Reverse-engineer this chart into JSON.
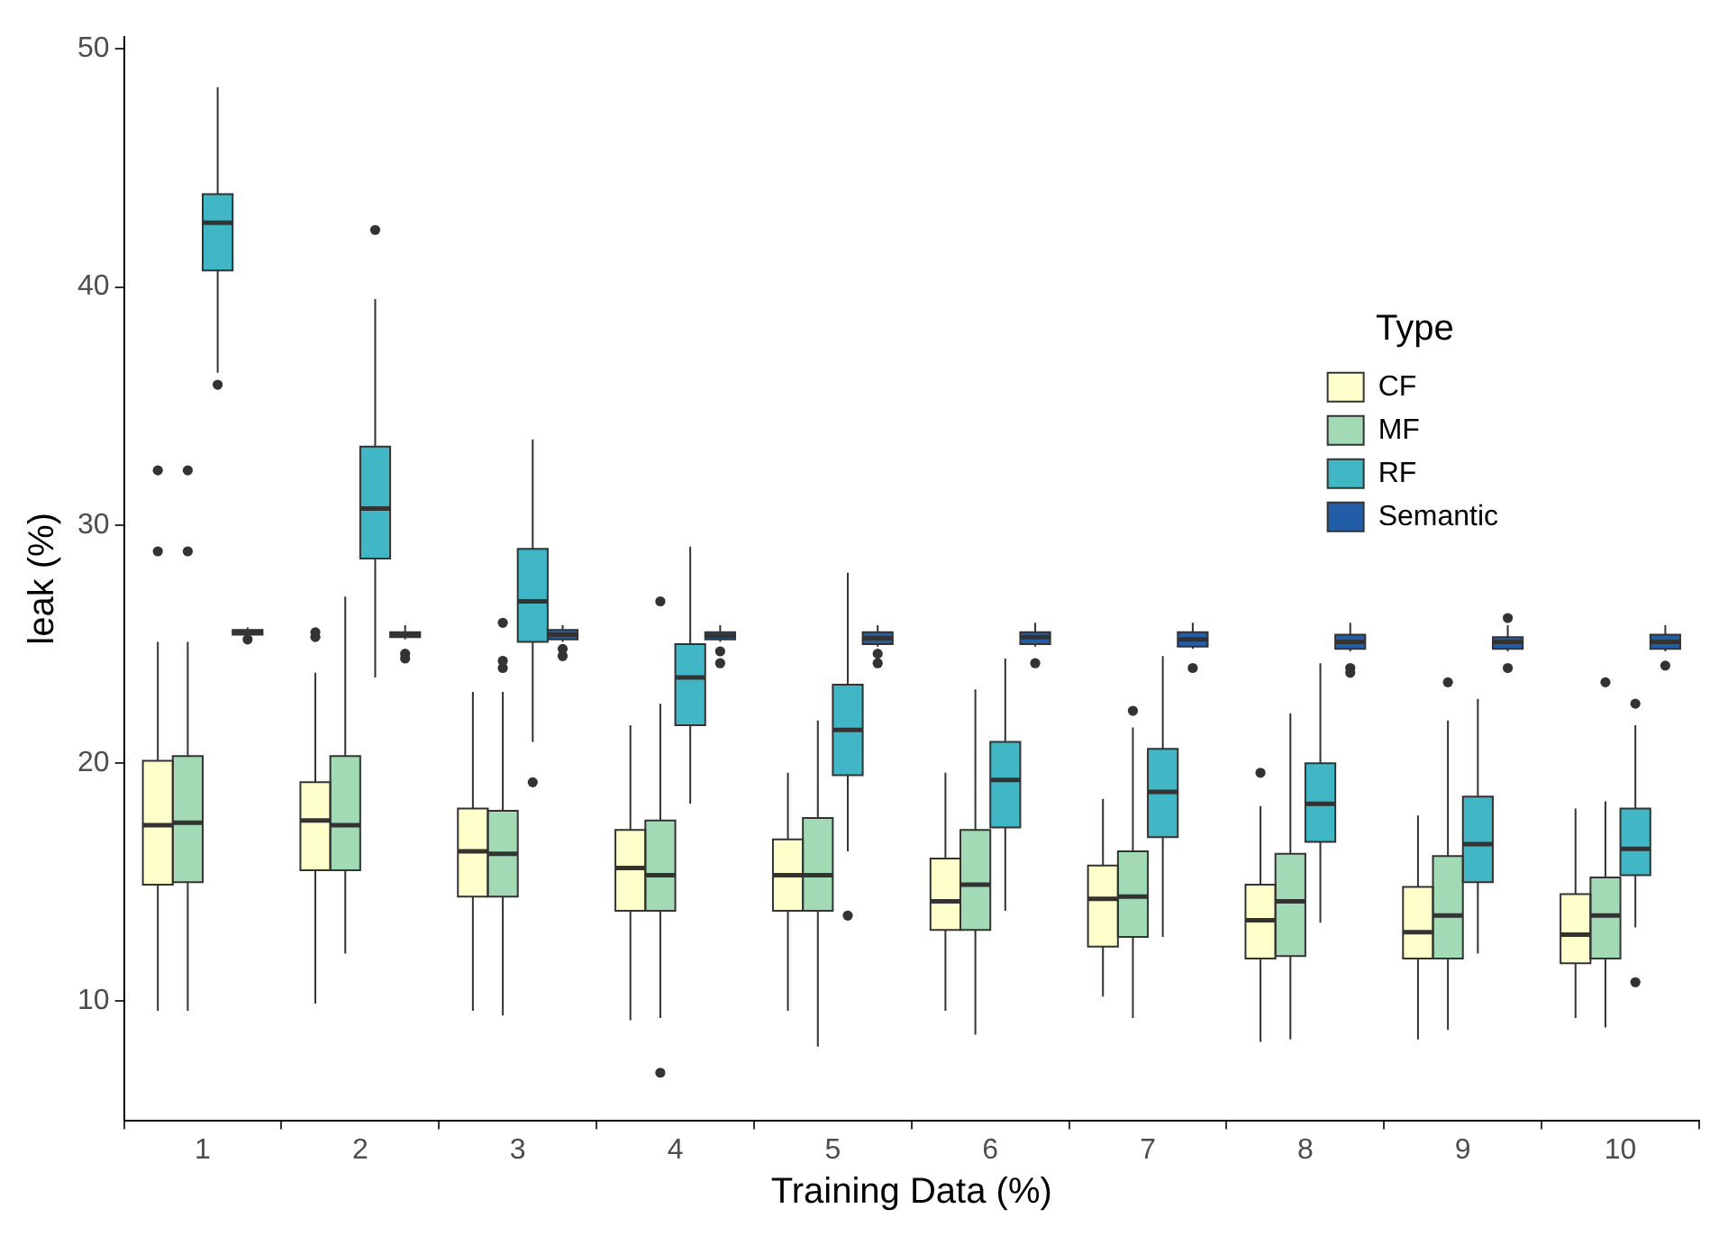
{
  "chart_data": {
    "type": "box",
    "xlabel": "Training Data (%)",
    "ylabel": "leak (%)",
    "legend_title": "Type",
    "legend": "right",
    "grid": false,
    "categories": [
      "1",
      "2",
      "3",
      "4",
      "5",
      "6",
      "7",
      "8",
      "9",
      "10"
    ],
    "ylim": [
      5,
      50.5
    ],
    "yticks": [
      10,
      20,
      30,
      40,
      50
    ],
    "series": [
      {
        "name": "CF",
        "color": "#ffffcc",
        "boxes": [
          {
            "low": 9.6,
            "q1": 14.9,
            "median": 17.4,
            "q3": 20.1,
            "high": 25.1,
            "outliers": [
              32.3,
              28.9
            ]
          },
          {
            "low": 9.9,
            "q1": 15.5,
            "median": 17.6,
            "q3": 19.2,
            "high": 23.8,
            "outliers": [
              25.5,
              25.3
            ]
          },
          {
            "low": 9.6,
            "q1": 14.4,
            "median": 16.3,
            "q3": 18.1,
            "high": 23.0
          },
          {
            "low": 9.2,
            "q1": 13.8,
            "median": 15.6,
            "q3": 17.2,
            "high": 21.6
          },
          {
            "low": 9.6,
            "q1": 13.8,
            "median": 15.3,
            "q3": 16.8,
            "high": 19.6
          },
          {
            "low": 9.6,
            "q1": 13.0,
            "median": 14.2,
            "q3": 16.0,
            "high": 19.6
          },
          {
            "low": 10.2,
            "q1": 12.3,
            "median": 14.3,
            "q3": 15.7,
            "high": 18.5
          },
          {
            "low": 8.3,
            "q1": 11.8,
            "median": 13.4,
            "q3": 14.9,
            "high": 18.2,
            "outliers": [
              19.6
            ]
          },
          {
            "low": 8.4,
            "q1": 11.8,
            "median": 12.9,
            "q3": 14.8,
            "high": 17.8
          },
          {
            "low": 9.3,
            "q1": 11.6,
            "median": 12.8,
            "q3": 14.5,
            "high": 18.1
          }
        ]
      },
      {
        "name": "MF",
        "color": "#a1dab4",
        "boxes": [
          {
            "low": 9.6,
            "q1": 15.0,
            "median": 17.5,
            "q3": 20.3,
            "high": 25.1,
            "outliers": [
              32.3,
              28.9
            ]
          },
          {
            "low": 12.0,
            "q1": 15.5,
            "median": 17.4,
            "q3": 20.3,
            "high": 27.0
          },
          {
            "low": 9.4,
            "q1": 14.4,
            "median": 16.2,
            "q3": 18.0,
            "high": 23.0,
            "outliers": [
              25.9,
              24.3,
              24.0
            ]
          },
          {
            "low": 9.3,
            "q1": 13.8,
            "median": 15.3,
            "q3": 17.6,
            "high": 22.5,
            "outliers": [
              26.8,
              7.0
            ]
          },
          {
            "low": 8.1,
            "q1": 13.8,
            "median": 15.3,
            "q3": 17.7,
            "high": 21.8
          },
          {
            "low": 8.6,
            "q1": 13.0,
            "median": 14.9,
            "q3": 17.2,
            "high": 23.1
          },
          {
            "low": 9.3,
            "q1": 12.7,
            "median": 14.4,
            "q3": 16.3,
            "high": 21.5,
            "outliers": [
              22.2
            ]
          },
          {
            "low": 8.4,
            "q1": 11.9,
            "median": 14.2,
            "q3": 16.2,
            "high": 22.1
          },
          {
            "low": 8.8,
            "q1": 11.8,
            "median": 13.6,
            "q3": 16.1,
            "high": 21.8,
            "outliers": [
              23.4
            ]
          },
          {
            "low": 8.9,
            "q1": 11.8,
            "median": 13.6,
            "q3": 15.2,
            "high": 18.4,
            "outliers": [
              23.4
            ]
          }
        ]
      },
      {
        "name": "RF",
        "color": "#41b6c4",
        "boxes": [
          {
            "low": 36.4,
            "q1": 40.7,
            "median": 42.7,
            "q3": 43.9,
            "high": 48.4,
            "outliers": [
              35.9
            ]
          },
          {
            "low": 23.6,
            "q1": 28.6,
            "median": 30.7,
            "q3": 33.3,
            "high": 39.5,
            "outliers": [
              42.4
            ]
          },
          {
            "low": 20.9,
            "q1": 25.1,
            "median": 26.8,
            "q3": 29.0,
            "high": 33.6,
            "outliers": [
              19.2
            ]
          },
          {
            "low": 18.3,
            "q1": 21.6,
            "median": 23.6,
            "q3": 25.0,
            "high": 29.1
          },
          {
            "low": 16.3,
            "q1": 19.5,
            "median": 21.4,
            "q3": 23.3,
            "high": 28.0,
            "outliers": [
              13.6
            ]
          },
          {
            "low": 13.8,
            "q1": 17.3,
            "median": 19.3,
            "q3": 20.9,
            "high": 24.4
          },
          {
            "low": 12.7,
            "q1": 16.9,
            "median": 18.8,
            "q3": 20.6,
            "high": 24.5
          },
          {
            "low": 13.3,
            "q1": 16.7,
            "median": 18.3,
            "q3": 20.0,
            "high": 24.2
          },
          {
            "low": 12.0,
            "q1": 15.0,
            "median": 16.6,
            "q3": 18.6,
            "high": 22.7
          },
          {
            "low": 13.1,
            "q1": 15.3,
            "median": 16.4,
            "q3": 18.1,
            "high": 21.6,
            "outliers": [
              22.5,
              10.8
            ]
          }
        ]
      },
      {
        "name": "Semantic",
        "color": "#225ea8",
        "boxes": [
          {
            "low": 25.3,
            "q1": 25.4,
            "median": 25.5,
            "q3": 25.6,
            "high": 25.7,
            "outliers": [
              25.2
            ]
          },
          {
            "low": 25.2,
            "q1": 25.3,
            "median": 25.4,
            "q3": 25.5,
            "high": 25.8,
            "outliers": [
              24.6,
              24.4
            ]
          },
          {
            "low": 25.1,
            "q1": 25.2,
            "median": 25.4,
            "q3": 25.6,
            "high": 25.8,
            "outliers": [
              24.8,
              24.5
            ]
          },
          {
            "low": 25.1,
            "q1": 25.2,
            "median": 25.35,
            "q3": 25.5,
            "high": 25.8,
            "outliers": [
              24.7,
              24.2
            ]
          },
          {
            "low": 24.9,
            "q1": 25.0,
            "median": 25.25,
            "q3": 25.5,
            "high": 25.8,
            "outliers": [
              24.6,
              24.2
            ]
          },
          {
            "low": 24.9,
            "q1": 25.0,
            "median": 25.3,
            "q3": 25.5,
            "high": 25.9,
            "outliers": [
              24.2
            ]
          },
          {
            "low": 24.8,
            "q1": 24.9,
            "median": 25.2,
            "q3": 25.5,
            "high": 25.9,
            "outliers": [
              24.0
            ]
          },
          {
            "low": 24.7,
            "q1": 24.8,
            "median": 25.1,
            "q3": 25.4,
            "high": 25.9,
            "outliers": [
              24.0,
              23.8
            ]
          },
          {
            "low": 24.7,
            "q1": 24.8,
            "median": 25.1,
            "q3": 25.3,
            "high": 25.8,
            "outliers": [
              26.1,
              24.0
            ]
          },
          {
            "low": 24.7,
            "q1": 24.8,
            "median": 25.1,
            "q3": 25.4,
            "high": 25.8,
            "outliers": [
              24.1
            ]
          }
        ]
      }
    ]
  }
}
